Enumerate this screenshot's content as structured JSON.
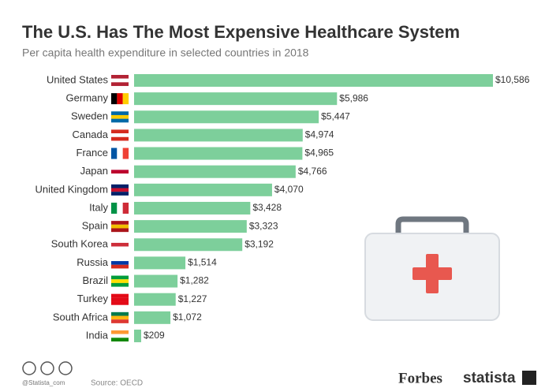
{
  "chart_data": {
    "type": "bar",
    "orientation": "horizontal",
    "title": "The U.S. Has The Most Expensive Healthcare System",
    "subtitle": "Per capita health expenditure in selected countries in 2018",
    "categories": [
      "United States",
      "Germany",
      "Sweden",
      "Canada",
      "France",
      "Japan",
      "United Kingdom",
      "Italy",
      "Spain",
      "South Korea",
      "Russia",
      "Brazil",
      "Turkey",
      "South Africa",
      "India"
    ],
    "values": [
      10586,
      5986,
      5447,
      4974,
      4965,
      4766,
      4070,
      3428,
      3323,
      3192,
      1514,
      1282,
      1227,
      1072,
      209
    ],
    "value_labels": [
      "$10,586",
      "$5,986",
      "$5,447",
      "$4,974",
      "$4,965",
      "$4,766",
      "$4,070",
      "$3,428",
      "$3,323",
      "$3,192",
      "$1,514",
      "$1,282",
      "$1,227",
      "$1,072",
      "$209"
    ],
    "color": "#7dcf9b",
    "credit": "@Statista_com",
    "source": "Source: OECD",
    "brands": [
      "Forbes",
      "statista"
    ]
  }
}
